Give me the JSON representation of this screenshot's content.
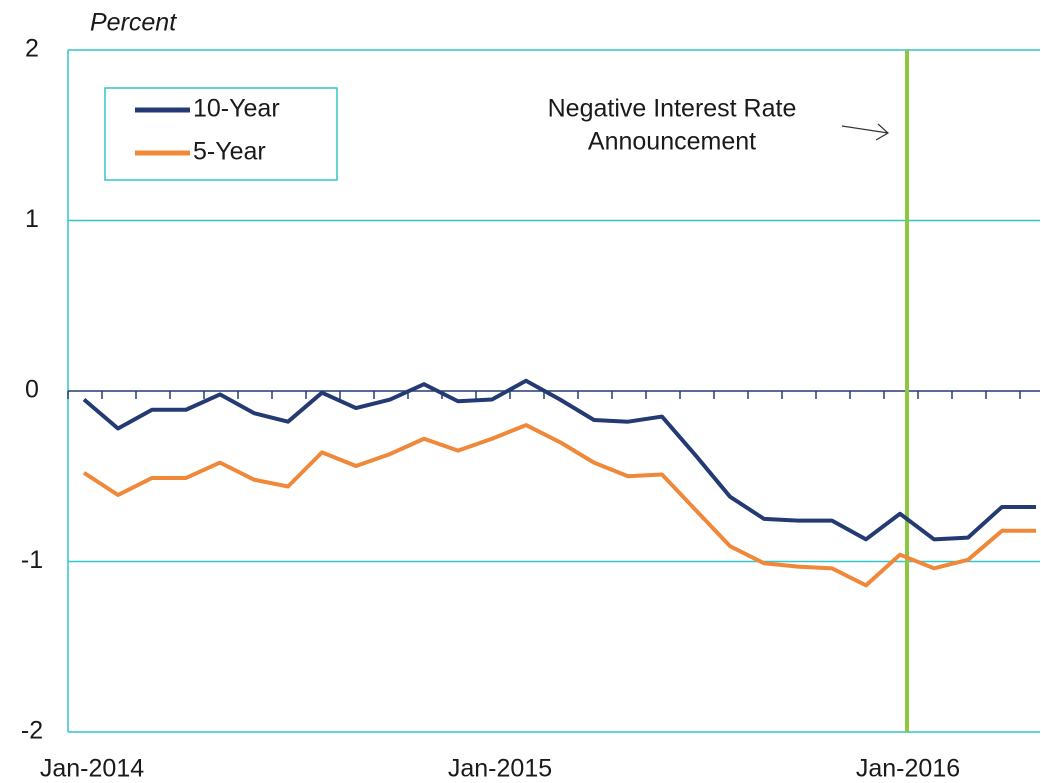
{
  "chart_data": {
    "type": "line",
    "y_axis_label": "Percent",
    "annotation": [
      "Negative Interest  Rate",
      "Announcement"
    ],
    "categories": [
      "Jan-2014",
      null,
      null,
      null,
      null,
      null,
      null,
      null,
      null,
      null,
      null,
      null,
      "Jan-2015",
      null,
      null,
      null,
      null,
      null,
      null,
      null,
      null,
      null,
      null,
      null,
      "Jan-2016",
      null,
      null,
      null,
      null
    ],
    "series": [
      {
        "name": "10-Year",
        "color": "#243a73",
        "values": [
          -0.05,
          -0.22,
          -0.11,
          -0.11,
          -0.02,
          -0.13,
          -0.18,
          -0.01,
          -0.1,
          -0.05,
          0.04,
          -0.06,
          -0.05,
          0.06,
          -0.05,
          -0.17,
          -0.18,
          -0.15,
          -0.38,
          -0.62,
          -0.75,
          -0.76,
          -0.76,
          -0.87,
          -0.72,
          -0.87,
          -0.86,
          -0.68,
          -0.68
        ]
      },
      {
        "name": "5-Year",
        "color": "#f0883a",
        "values": [
          -0.48,
          -0.61,
          -0.51,
          -0.51,
          -0.42,
          -0.52,
          -0.56,
          -0.36,
          -0.44,
          -0.37,
          -0.28,
          -0.35,
          -0.28,
          -0.2,
          -0.3,
          -0.42,
          -0.5,
          -0.49,
          -0.7,
          -0.91,
          -1.01,
          -1.03,
          -1.04,
          -1.14,
          -0.96,
          -1.04,
          -0.99,
          -0.82,
          -0.82
        ]
      }
    ],
    "ylim": [
      -2,
      2
    ],
    "yticks": [
      -2,
      -1,
      0,
      1,
      2
    ],
    "grid": true,
    "legend": "upper left"
  }
}
